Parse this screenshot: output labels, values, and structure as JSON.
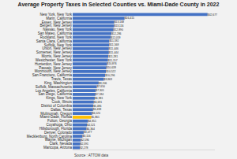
{
  "chart_data": {
    "type": "bar",
    "orientation": "horizontal",
    "title": "Average Property Taxes in Selected Counties vs. Miami-Dade County in 2022",
    "annotations": [
      "Source : ATTOM data"
    ],
    "categories": [
      "New York, New York",
      "Marin, California",
      "Essex, New Jersey",
      "Bergen, New Jersey",
      "Nassau, New York",
      "San Mateo, California",
      "Rockland, New York",
      "Santa Clara, California",
      "Suffolk, New York",
      "Union, New Jersey",
      "Somerset, New Jersey",
      "Morris, New Jersey",
      "Westchester, New York",
      "Hunterdon, New Jersey",
      "Passaic, New Jersey",
      "Monmouth, New Jersey",
      "San Francisco, California",
      "Travis, Texas",
      "King, Washington",
      "Suffolk, Massachusetts",
      "Los Angeles, California",
      "San Diego, California",
      "Kings, New York",
      "Cook, Illinois",
      "District of Columbia",
      "Dallas, Texas",
      "Multnomah, Oregon",
      "Miami-Dade, Florida",
      "Fulton, Georgia",
      "Cuyahoga, Ohio",
      "Hillsborough, Florida",
      "Denver, Colorado",
      "Mecklenburg, North Carolina",
      "Wayne, Michigan",
      "Clark, Nevada",
      "Maricopa, Arizona"
    ],
    "values": [
      42677,
      16415,
      13168,
      13116,
      12890,
      12286,
      12059,
      11592,
      11568,
      11446,
      11444,
      11281,
      11157,
      10876,
      10639,
      10522,
      10296,
      9869,
      8206,
      7650,
      7305,
      7184,
      6981,
      6691,
      6486,
      6438,
      6120,
      5861,
      4851,
      4521,
      4364,
      3477,
      3116,
      2596,
      2391,
      2278
    ],
    "value_labels": [
      "$42,677",
      "$16,415",
      "$13,168",
      "$13,116",
      "$12,890",
      "$12,286",
      "$12,059",
      "$11,592",
      "$11,568",
      "$11,446",
      "$11,444",
      "$11,281",
      "$11,157",
      "$10,876",
      "$10,639",
      "$10,522",
      "$10,296",
      "$9,869",
      "$8,206",
      "$7,650",
      "$7,305",
      "$7,184",
      "$6,981",
      "$6,691",
      "$6,486",
      "$6,438",
      "$6,120",
      "$5,861",
      "$4,851",
      "$4,521",
      "$4,364",
      "$3,477",
      "$3,116",
      "$2,596",
      "$2,391",
      "$2,278"
    ],
    "colors": [
      "#4472c4",
      "#4472c4",
      "#4472c4",
      "#4472c4",
      "#4472c4",
      "#4472c4",
      "#4472c4",
      "#4472c4",
      "#4472c4",
      "#4472c4",
      "#4472c4",
      "#4472c4",
      "#4472c4",
      "#4472c4",
      "#4472c4",
      "#4472c4",
      "#4472c4",
      "#4472c4",
      "#4472c4",
      "#4472c4",
      "#4472c4",
      "#4472c4",
      "#4472c4",
      "#4472c4",
      "#4472c4",
      "#4472c4",
      "#4472c4",
      "#ffc000",
      "#4472c4",
      "#4472c4",
      "#4472c4",
      "#4472c4",
      "#4472c4",
      "#4472c4",
      "#4472c4",
      "#4472c4"
    ],
    "xlim": [
      0,
      45000
    ],
    "xticks": [],
    "data_labels": true,
    "tick_labels": "y",
    "grid": false
  }
}
